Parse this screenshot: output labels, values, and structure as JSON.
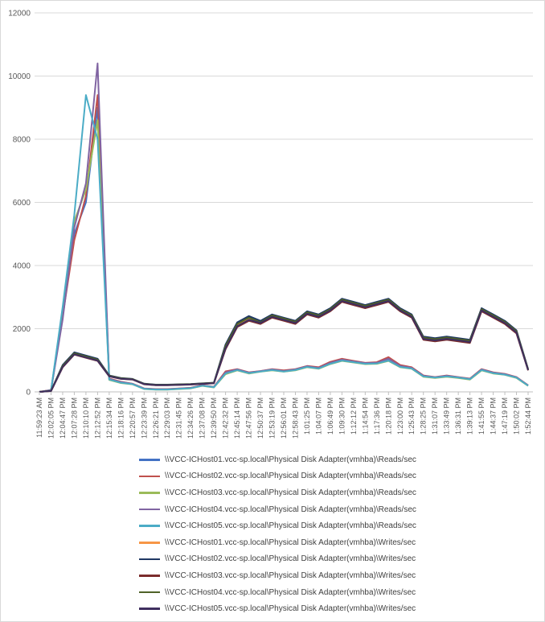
{
  "chart_data": {
    "type": "line",
    "title": "",
    "xlabel": "",
    "ylabel": "",
    "ylim": [
      0,
      12000
    ],
    "yticks": [
      "0",
      "2000",
      "4000",
      "6000",
      "8000",
      "10000",
      "12000"
    ],
    "grid": "horizontal",
    "legend_position": "bottom",
    "x": [
      "11:59:23 AM",
      "12:02:05 PM",
      "12:04:47 PM",
      "12:07:28 PM",
      "12:10:10 PM",
      "12:12:52 PM",
      "12:15:34 PM",
      "12:18:16 PM",
      "12:20:57 PM",
      "12:23:39 PM",
      "12:26:21 PM",
      "12:29:03 PM",
      "12:31:45 PM",
      "12:34:26 PM",
      "12:37:08 PM",
      "12:39:50 PM",
      "12:42:32 PM",
      "12:45:14 PM",
      "12:47:56 PM",
      "12:50:37 PM",
      "12:53:19 PM",
      "12:56:01 PM",
      "12:58:43 PM",
      "1:01:25 PM",
      "1:04:07 PM",
      "1:06:49 PM",
      "1:09:30 PM",
      "1:12:12 PM",
      "1:14:54 PM",
      "1:17:36 PM",
      "1:20:18 PM",
      "1:23:00 PM",
      "1:25:43 PM",
      "1:28:25 PM",
      "1:31:07 PM",
      "1:33:49 PM",
      "1:36:31 PM",
      "1:39:13 PM",
      "1:41:55 PM",
      "1:44:37 PM",
      "1:47:19 PM",
      "1:50:02 PM",
      "1:52:44 PM"
    ],
    "series": [
      {
        "name": "\\\\VCC-ICHost01.vcc-sp.local\\Physical Disk Adapter(vmhba)\\Reads/sec",
        "color": "#4472c4",
        "values": [
          0,
          50,
          2500,
          5000,
          6000,
          9000,
          400,
          300,
          250,
          100,
          80,
          80,
          100,
          120,
          200,
          150,
          600,
          700,
          600,
          650,
          700,
          650,
          700,
          800,
          750,
          900,
          1000,
          950,
          900,
          900,
          1000,
          800,
          750,
          500,
          450,
          500,
          450,
          400,
          700,
          600,
          550,
          450,
          200
        ]
      },
      {
        "name": "\\\\VCC-ICHost02.vcc-sp.local\\Physical Disk Adapter(vmhba)\\Reads/sec",
        "color": "#c0504d",
        "values": [
          0,
          60,
          2400,
          4800,
          6200,
          9400,
          420,
          320,
          260,
          110,
          90,
          90,
          110,
          130,
          210,
          160,
          650,
          720,
          620,
          660,
          720,
          680,
          720,
          820,
          780,
          950,
          1050,
          980,
          920,
          940,
          1100,
          850,
          780,
          520,
          470,
          520,
          470,
          420,
          720,
          620,
          570,
          470,
          210
        ]
      },
      {
        "name": "\\\\VCC-ICHost03.vcc-sp.local\\Physical Disk Adapter(vmhba)\\Reads/sec",
        "color": "#9bbb59",
        "values": [
          0,
          40,
          2600,
          5400,
          6400,
          8600,
          380,
          280,
          240,
          90,
          70,
          70,
          90,
          110,
          190,
          140,
          560,
          680,
          580,
          640,
          680,
          640,
          680,
          780,
          730,
          880,
          980,
          930,
          880,
          890,
          980,
          780,
          730,
          480,
          440,
          480,
          440,
          390,
          680,
          580,
          540,
          440,
          190
        ]
      },
      {
        "name": "\\\\VCC-ICHost04.vcc-sp.local\\Physical Disk Adapter(vmhba)\\Reads/sec",
        "color": "#8064a2",
        "values": [
          0,
          55,
          2300,
          5200,
          6600,
          10400,
          410,
          310,
          255,
          105,
          85,
          85,
          105,
          125,
          205,
          155,
          620,
          710,
          610,
          655,
          710,
          660,
          710,
          810,
          760,
          920,
          1020,
          960,
          910,
          920,
          1050,
          820,
          760,
          510,
          460,
          510,
          460,
          410,
          710,
          610,
          560,
          460,
          205
        ]
      },
      {
        "name": "\\\\VCC-ICHost05.vcc-sp.local\\Physical Disk Adapter(vmhba)\\Reads/sec",
        "color": "#4bacc6",
        "values": [
          0,
          45,
          2700,
          5600,
          9400,
          8000,
          390,
          290,
          245,
          95,
          75,
          75,
          95,
          115,
          195,
          145,
          580,
          690,
          590,
          645,
          690,
          645,
          690,
          790,
          740,
          890,
          990,
          940,
          890,
          900,
          990,
          790,
          740,
          490,
          450,
          490,
          450,
          400,
          690,
          590,
          545,
          450,
          195
        ]
      },
      {
        "name": "\\\\VCC-ICHost01.vcc-sp.local\\Physical Disk Adapter(vmhba)\\Writes/sec",
        "color": "#f79646",
        "values": [
          0,
          30,
          800,
          1200,
          1100,
          1000,
          500,
          420,
          400,
          250,
          220,
          220,
          230,
          240,
          260,
          280,
          1400,
          2100,
          2300,
          2200,
          2400,
          2300,
          2200,
          2500,
          2400,
          2600,
          2900,
          2800,
          2700,
          2800,
          2900,
          2600,
          2400,
          1700,
          1650,
          1700,
          1650,
          1600,
          2600,
          2400,
          2200,
          1900,
          700
        ]
      },
      {
        "name": "\\\\VCC-ICHost02.vcc-sp.local\\Physical Disk Adapter(vmhba)\\Writes/sec",
        "color": "#1f3864",
        "values": [
          0,
          35,
          850,
          1250,
          1150,
          1050,
          520,
          440,
          410,
          260,
          230,
          230,
          240,
          250,
          270,
          290,
          1500,
          2200,
          2400,
          2250,
          2450,
          2350,
          2250,
          2550,
          2450,
          2650,
          2950,
          2850,
          2750,
          2850,
          2950,
          2650,
          2450,
          1750,
          1700,
          1750,
          1700,
          1650,
          2650,
          2450,
          2250,
          1950,
          720
        ]
      },
      {
        "name": "\\\\VCC-ICHost03.vcc-sp.local\\Physical Disk Adapter(vmhba)\\Writes/sec",
        "color": "#7b2c2c",
        "values": [
          0,
          25,
          780,
          1180,
          1080,
          980,
          490,
          410,
          390,
          240,
          210,
          210,
          220,
          230,
          250,
          270,
          1350,
          2050,
          2250,
          2150,
          2350,
          2250,
          2150,
          2450,
          2350,
          2550,
          2850,
          2750,
          2650,
          2750,
          2850,
          2550,
          2350,
          1650,
          1600,
          1650,
          1600,
          1550,
          2550,
          2350,
          2150,
          1850,
          680
        ]
      },
      {
        "name": "\\\\VCC-ICHost04.vcc-sp.local\\Physical Disk Adapter(vmhba)\\Writes/sec",
        "color": "#4f6228",
        "values": [
          0,
          32,
          820,
          1220,
          1120,
          1020,
          510,
          430,
          405,
          255,
          225,
          225,
          235,
          245,
          265,
          285,
          1450,
          2150,
          2350,
          2200,
          2420,
          2320,
          2220,
          2520,
          2420,
          2620,
          2920,
          2820,
          2720,
          2820,
          2920,
          2620,
          2420,
          1720,
          1670,
          1720,
          1670,
          1620,
          2620,
          2420,
          2220,
          1920,
          710
        ]
      },
      {
        "name": "\\\\VCC-ICHost05.vcc-sp.local\\Physical Disk Adapter(vmhba)\\Writes/sec",
        "color": "#3f2f5f",
        "values": [
          0,
          28,
          790,
          1190,
          1090,
          990,
          495,
          415,
          395,
          245,
          215,
          215,
          225,
          235,
          255,
          275,
          1380,
          2080,
          2280,
          2180,
          2380,
          2280,
          2180,
          2480,
          2380,
          2580,
          2880,
          2780,
          2680,
          2780,
          2880,
          2580,
          2380,
          1680,
          1630,
          1680,
          1630,
          1580,
          2580,
          2380,
          2180,
          1880,
          690
        ]
      }
    ]
  }
}
